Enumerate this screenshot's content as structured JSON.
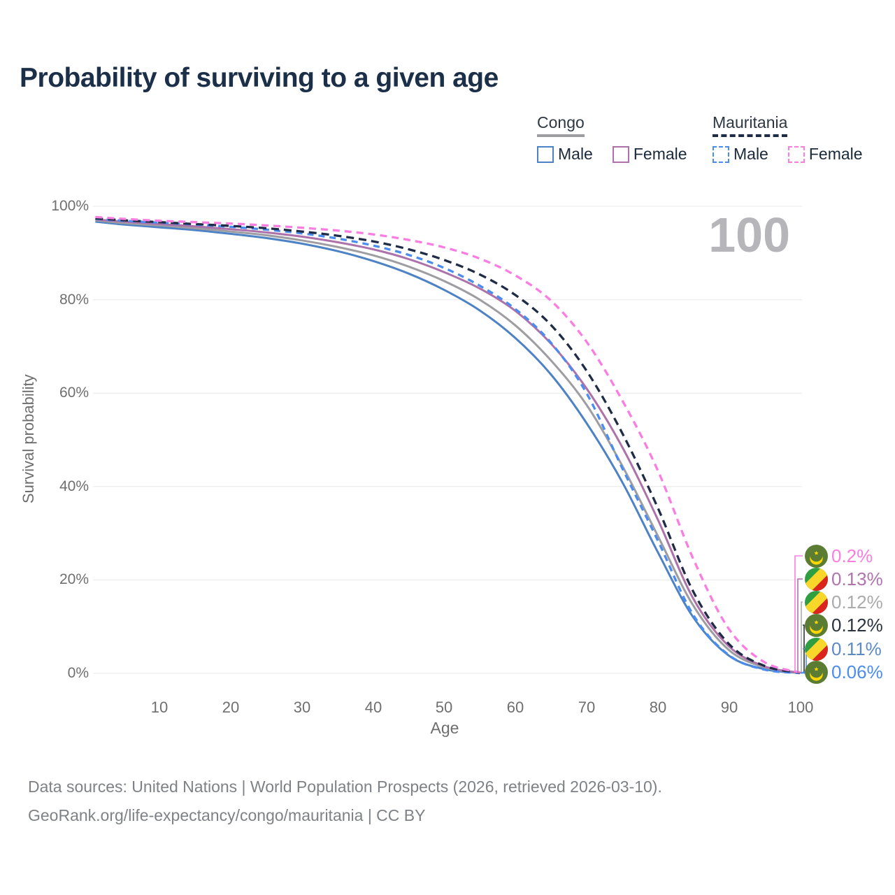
{
  "title": "Probability of surviving to a given age",
  "watermark": "100",
  "legend": {
    "groups": [
      {
        "name": "Congo",
        "line_style": "solid",
        "items": [
          {
            "label": "Male"
          },
          {
            "label": "Female"
          }
        ]
      },
      {
        "name": "Mauritania",
        "line_style": "dashed",
        "items": [
          {
            "label": "Male"
          },
          {
            "label": "Female"
          }
        ]
      }
    ]
  },
  "colors": {
    "congo_male": "#4d82c4",
    "congo_female": "#ad72aa",
    "congo_both": "#9e9ea2",
    "maur_male": "#4b8cf0",
    "maur_both": "#1f2c46",
    "maur_female": "#fb7de2",
    "grid": "#e8e8e8",
    "flag_congo_green": "#2f9e41",
    "flag_congo_yellow": "#f8d72a",
    "flag_congo_red": "#dc241f",
    "flag_maur_green": "#5a7d33",
    "flag_maur_yellow": "#ffd700"
  },
  "chart_data": {
    "type": "line",
    "title": "Probability of surviving to a given age",
    "xlabel": "Age",
    "ylabel": "Survival probability",
    "xlim": [
      0,
      100
    ],
    "ylim": [
      0,
      100
    ],
    "grid": "horizontal",
    "hovered_age": 100,
    "x_ticks": [
      10,
      20,
      30,
      40,
      50,
      60,
      70,
      80,
      90,
      100
    ],
    "x_tick_labels": [
      "10",
      "20",
      "30",
      "40",
      "50",
      "60",
      "70",
      "80",
      "90",
      "100"
    ],
    "y_ticks": [
      100,
      80,
      60,
      40,
      20,
      0
    ],
    "y_tick_labels": [
      "100%",
      "80%",
      "60%",
      "40%",
      "20%",
      "0%"
    ],
    "x": [
      1,
      5,
      10,
      15,
      20,
      25,
      30,
      35,
      40,
      45,
      50,
      55,
      60,
      65,
      70,
      75,
      80,
      85,
      90,
      95,
      100
    ],
    "series": [
      {
        "key": "congo_male",
        "name": "Congo Male",
        "style": "solid",
        "color": "#4d82c4",
        "dash": null,
        "values": [
          96.7,
          96.1,
          95.5,
          94.9,
          94.1,
          93.2,
          92.0,
          90.4,
          88.3,
          85.6,
          82.1,
          77.7,
          71.8,
          64.0,
          53.6,
          41.0,
          26.0,
          12.0,
          3.8,
          0.9,
          0.11
        ]
      },
      {
        "key": "congo_both",
        "name": "Congo Both sexes",
        "style": "solid",
        "color": "#9e9ea2",
        "dash": null,
        "values": [
          97.0,
          96.4,
          95.9,
          95.3,
          94.6,
          93.8,
          92.7,
          91.3,
          89.5,
          87.1,
          84.0,
          80.0,
          74.5,
          67.0,
          57.5,
          44.5,
          29.5,
          14.5,
          5.0,
          1.3,
          0.12
        ]
      },
      {
        "key": "congo_female",
        "name": "Congo Female",
        "style": "solid",
        "color": "#ad72aa",
        "dash": null,
        "values": [
          97.2,
          96.7,
          96.2,
          95.7,
          95.1,
          94.4,
          93.5,
          92.3,
          90.8,
          88.7,
          85.9,
          82.4,
          77.6,
          70.6,
          61.0,
          48.5,
          33.0,
          16.0,
          5.8,
          1.5,
          0.13
        ]
      },
      {
        "key": "maur_male",
        "name": "Mauritania Male",
        "style": "dashed",
        "color": "#4b8cf0",
        "dash": "9 7",
        "values": [
          97.3,
          96.9,
          96.5,
          96.1,
          95.6,
          95.0,
          94.2,
          93.1,
          91.6,
          89.6,
          86.8,
          83.0,
          78.0,
          70.8,
          60.0,
          44.0,
          28.5,
          12.5,
          3.9,
          0.8,
          0.06
        ]
      },
      {
        "key": "maur_both",
        "name": "Mauritania Both sexes",
        "style": "dashed",
        "color": "#1f2c46",
        "dash": "11 7",
        "values": [
          97.4,
          97.0,
          96.6,
          96.2,
          95.8,
          95.3,
          94.6,
          93.7,
          92.5,
          90.8,
          88.5,
          85.4,
          81.0,
          74.6,
          64.8,
          51.5,
          35.5,
          17.5,
          6.3,
          1.6,
          0.12
        ]
      },
      {
        "key": "maur_female",
        "name": "Mauritania Female",
        "style": "dashed",
        "color": "#fb7de2",
        "dash": "10 7",
        "values": [
          97.7,
          97.3,
          96.9,
          96.6,
          96.3,
          95.9,
          95.4,
          94.8,
          94.0,
          92.8,
          91.2,
          88.8,
          85.2,
          79.8,
          71.0,
          58.5,
          43.5,
          24.5,
          9.5,
          2.4,
          0.2
        ]
      }
    ]
  },
  "end_labels": [
    {
      "text": "0.2%",
      "series": "maur_female",
      "flag": "mauritania",
      "color": "#fb7de2"
    },
    {
      "text": "0.13%",
      "series": "congo_female",
      "flag": "congo",
      "color": "#b073ae"
    },
    {
      "text": "0.12%",
      "series": "congo_both",
      "flag": "congo",
      "color": "#ababab"
    },
    {
      "text": "0.12%",
      "series": "maur_both",
      "flag": "mauritania",
      "color": "#2a333f"
    },
    {
      "text": "0.11%",
      "series": "congo_male",
      "flag": "congo",
      "color": "#5c8ac6"
    },
    {
      "text": "0.06%",
      "series": "maur_male",
      "flag": "mauritania",
      "color": "#4b8cf0"
    }
  ],
  "footer": {
    "line1": "Data sources: United Nations | World Population Prospects (2026, retrieved 2026-03-10).",
    "line2": "GeoRank.org/life-expectancy/congo/mauritania | CC BY"
  }
}
